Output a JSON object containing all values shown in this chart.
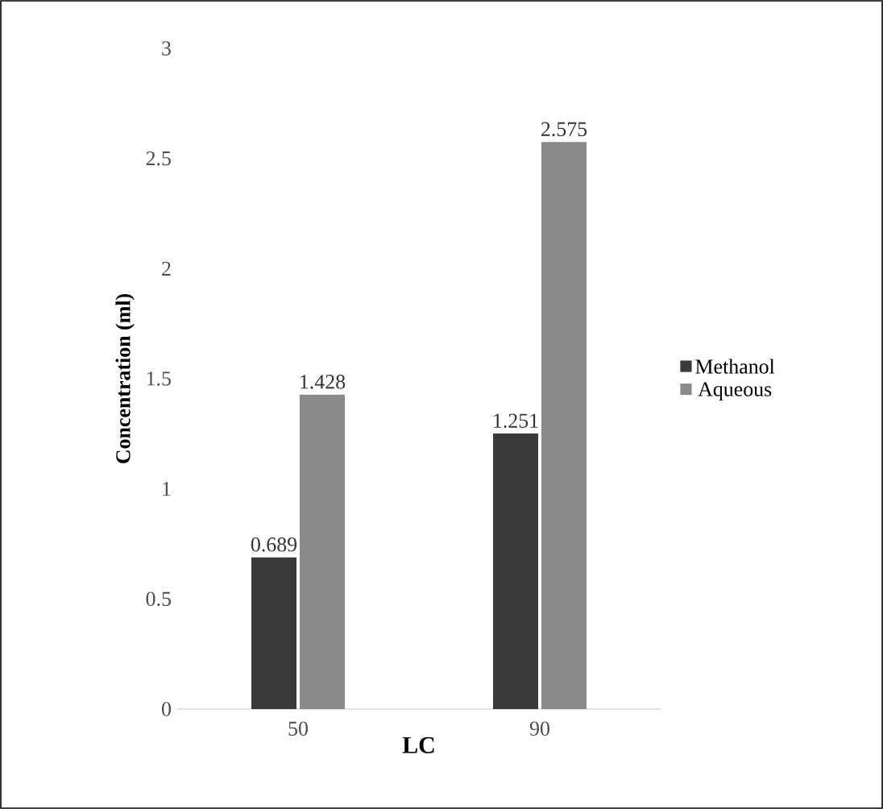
{
  "chart_data": {
    "type": "bar",
    "xlabel": "LC",
    "ylabel": "Concentration (ml)",
    "categories": [
      "50",
      "90"
    ],
    "series": [
      {
        "name": "Methanol",
        "color": "#3a3a3a",
        "values": [
          0.689,
          1.251
        ]
      },
      {
        "name": "Aqueous",
        "color": "#8a8a8a",
        "values": [
          1.428,
          2.575
        ]
      }
    ],
    "ylim": [
      0,
      3
    ],
    "yticks": [
      0,
      0.5,
      1,
      1.5,
      2,
      2.5,
      3
    ],
    "data_labels": true,
    "legend": "right",
    "grid": false
  }
}
